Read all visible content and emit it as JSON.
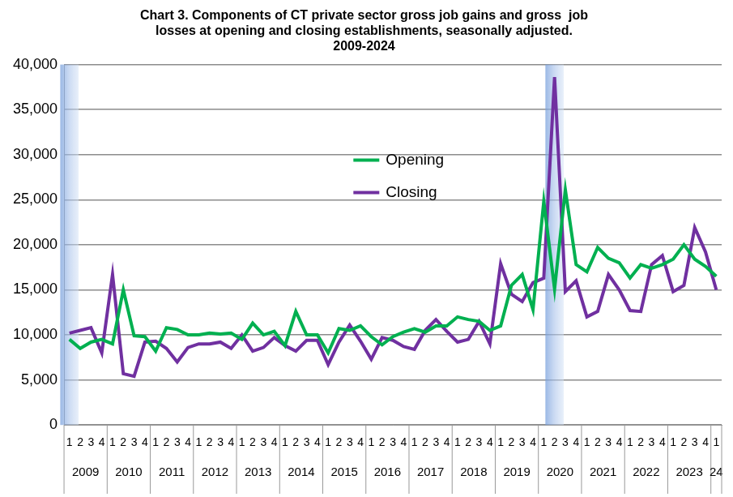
{
  "chart_data": {
    "type": "line",
    "title": [
      "Chart 3. Components of CT private sector gross job gains and gross  job",
      "losses at opening and closing establishments, seasonally adjusted.",
      "2009-2024"
    ],
    "categories": [
      "1",
      "2",
      "3",
      "4",
      "1",
      "2",
      "3",
      "4",
      "1",
      "2",
      "3",
      "4",
      "1",
      "2",
      "3",
      "4",
      "1",
      "2",
      "3",
      "4",
      "1",
      "2",
      "3",
      "4",
      "1",
      "2",
      "3",
      "4",
      "1",
      "2",
      "3",
      "4",
      "1",
      "2",
      "3",
      "4",
      "1",
      "2",
      "3",
      "4",
      "1",
      "2",
      "3",
      "4",
      "1",
      "2",
      "3",
      "4",
      "1",
      "2",
      "3",
      "4",
      "1",
      "2",
      "3",
      "4",
      "1",
      "2",
      "3",
      "4",
      "1"
    ],
    "x_groups": [
      {
        "label": "2009",
        "count": 4
      },
      {
        "label": "2010",
        "count": 4
      },
      {
        "label": "2011",
        "count": 4
      },
      {
        "label": "2012",
        "count": 4
      },
      {
        "label": "2013",
        "count": 4
      },
      {
        "label": "2014",
        "count": 4
      },
      {
        "label": "2015",
        "count": 4
      },
      {
        "label": "2016",
        "count": 4
      },
      {
        "label": "2017",
        "count": 4
      },
      {
        "label": "2018",
        "count": 4
      },
      {
        "label": "2019",
        "count": 4
      },
      {
        "label": "2020",
        "count": 4
      },
      {
        "label": "2021",
        "count": 4
      },
      {
        "label": "2022",
        "count": 4
      },
      {
        "label": "2023",
        "count": 4
      },
      {
        "label": "24",
        "count": 1
      }
    ],
    "shaded_categories": [
      0,
      45
    ],
    "series": [
      {
        "name": "Opening",
        "color": "#00b050",
        "values": [
          9500,
          8500,
          9200,
          9500,
          9000,
          15000,
          9900,
          9800,
          8200,
          10800,
          10600,
          10000,
          10000,
          10200,
          10100,
          10200,
          9500,
          11300,
          10000,
          10400,
          8800,
          12600,
          10000,
          10000,
          8000,
          10700,
          10500,
          11000,
          9800,
          8900,
          9800,
          10300,
          10700,
          10300,
          11000,
          11000,
          12000,
          11700,
          11500,
          10500,
          11000,
          15500,
          16700,
          12800,
          24800,
          15100,
          26100,
          17800,
          17000,
          19700,
          18500,
          18000,
          16300,
          17800,
          17400,
          17800,
          18400,
          20000,
          18400,
          17600,
          16500
        ]
      },
      {
        "name": "Closing",
        "color": "#7030a0",
        "values": [
          10200,
          10500,
          10800,
          8000,
          16700,
          5700,
          5400,
          9200,
          9300,
          8500,
          7000,
          8600,
          9000,
          9000,
          9200,
          8500,
          10000,
          8200,
          8600,
          9700,
          8800,
          8200,
          9400,
          9400,
          6700,
          9200,
          11100,
          9300,
          7300,
          9700,
          9400,
          8700,
          8400,
          10500,
          11700,
          10400,
          9200,
          9500,
          11500,
          9000,
          17900,
          14500,
          13700,
          15800,
          16300,
          38600,
          14800,
          16000,
          12000,
          12600,
          16700,
          15000,
          12700,
          12600,
          17800,
          18800,
          14800,
          15500,
          21900,
          19200,
          15000
        ]
      }
    ],
    "ylim": [
      0,
      40000
    ],
    "yticks": [
      0,
      {
        "value": 5000,
        "label": "5,000"
      },
      {
        "value": 10000,
        "label": "10,000"
      },
      {
        "value": 15000,
        "label": "15,000"
      },
      {
        "value": 20000,
        "label": "20,000"
      },
      {
        "value": 25000,
        "label": "25,000"
      },
      {
        "value": 30000,
        "label": "30,000"
      },
      {
        "value": 35000,
        "label": "35,000"
      },
      {
        "value": 40000,
        "label": "40,000"
      }
    ],
    "grid": true,
    "legend": "inside"
  }
}
